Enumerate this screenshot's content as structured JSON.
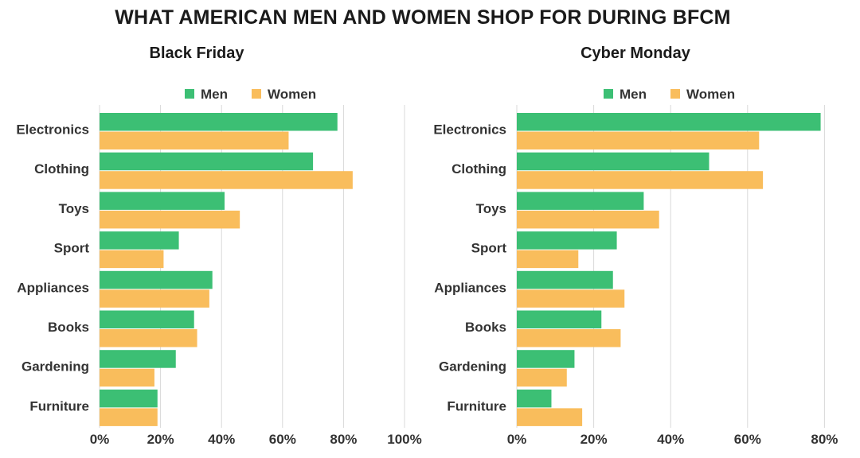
{
  "title": "WHAT AMERICAN MEN AND WOMEN SHOP FOR DURING BFCM",
  "colors": {
    "men": "#3cbf74",
    "women": "#f9bd5c"
  },
  "chart_data": [
    {
      "type": "bar",
      "orientation": "horizontal",
      "title": "Black Friday",
      "categories": [
        "Electronics",
        "Clothing",
        "Toys",
        "Sport",
        "Appliances",
        "Books",
        "Gardening",
        "Furniture"
      ],
      "series": [
        {
          "name": "Men",
          "values": [
            78,
            70,
            41,
            26,
            37,
            31,
            25,
            19
          ]
        },
        {
          "name": "Women",
          "values": [
            62,
            83,
            46,
            21,
            36,
            32,
            18,
            19
          ]
        }
      ],
      "xlim": [
        0,
        100
      ],
      "xticks": [
        "0%",
        "20%",
        "40%",
        "60%",
        "80%",
        "100%"
      ],
      "legend": "top"
    },
    {
      "type": "bar",
      "orientation": "horizontal",
      "title": "Cyber Monday",
      "categories": [
        "Electronics",
        "Clothing",
        "Toys",
        "Sport",
        "Appliances",
        "Books",
        "Gardening",
        "Furniture"
      ],
      "series": [
        {
          "name": "Men",
          "values": [
            79,
            50,
            33,
            26,
            25,
            22,
            15,
            9
          ]
        },
        {
          "name": "Women",
          "values": [
            63,
            64,
            37,
            16,
            28,
            27,
            13,
            17
          ]
        }
      ],
      "xlim": [
        0,
        80
      ],
      "xticks": [
        "0%",
        "20%",
        "40%",
        "60%",
        "80%"
      ],
      "legend": "top"
    }
  ]
}
